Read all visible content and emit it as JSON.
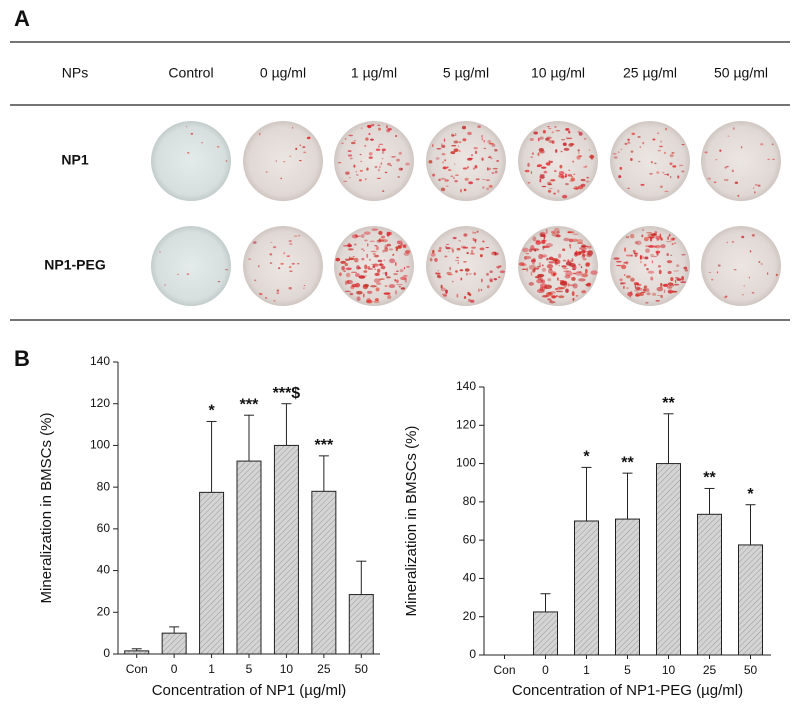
{
  "panel_a": {
    "label": "A",
    "header": [
      "NPs",
      "Control",
      "0 µg/ml",
      "1 µg/ml",
      "5 µg/ml",
      "10 µg/ml",
      "25 µg/ml",
      "50 µg/ml"
    ],
    "rows": [
      "NP1",
      "NP1-PEG"
    ]
  },
  "panel_b_label": "B",
  "chart_data": [
    {
      "type": "bar",
      "y_label": "Mineralization in BMSCs (%)",
      "x_label": "Concentration of NP1 (µg/ml)",
      "categories": [
        "Con",
        "0",
        "1",
        "5",
        "10",
        "25",
        "50"
      ],
      "values": [
        1.5,
        10,
        77.5,
        92.5,
        100,
        78,
        28.5
      ],
      "errors": [
        1,
        3,
        34,
        22,
        20,
        17,
        16
      ],
      "annotations": [
        null,
        null,
        "*",
        "***",
        "***$",
        "***",
        null
      ],
      "color": "#c8c8c8",
      "ylim": [
        0,
        140
      ],
      "yticks": [
        0,
        20,
        40,
        60,
        80,
        100,
        120,
        140
      ]
    },
    {
      "type": "bar",
      "y_label": "Mineralization in BMSCs (%)",
      "x_label": "Concentration of NP1-PEG (µg/ml)",
      "categories": [
        "Con",
        "0",
        "1",
        "5",
        "10",
        "25",
        "50"
      ],
      "values": [
        0,
        22.5,
        70,
        71,
        100,
        73.5,
        57.5
      ],
      "errors": [
        0,
        9.5,
        28,
        24,
        26,
        13.5,
        21
      ],
      "annotations": [
        null,
        null,
        "*",
        "**",
        "**",
        "**",
        "*"
      ],
      "color": "#c8c8c8",
      "ylim": [
        0,
        140
      ],
      "yticks": [
        0,
        20,
        40,
        60,
        80,
        100,
        120,
        140
      ]
    }
  ]
}
